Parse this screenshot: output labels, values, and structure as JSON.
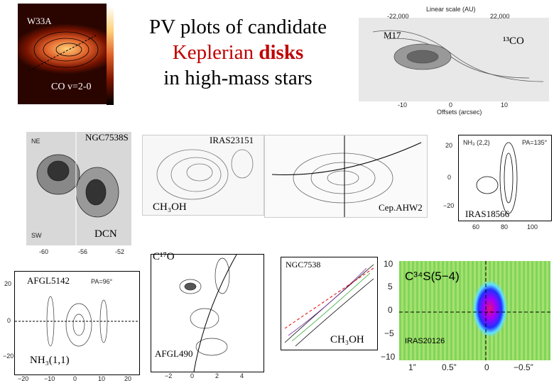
{
  "title": {
    "line1": "PV plots of candidate",
    "line2a": "Keplerian ",
    "line2b": "disks",
    "line3": "in high-mass stars"
  },
  "panels": [
    {
      "label": "W33A",
      "note": "CO v=2-0"
    },
    {
      "label": "M17",
      "note": "¹³CO",
      "top_axis": "Linear scale (AU)",
      "top_ticks": [
        "-22,000",
        "22,000"
      ],
      "x_axis": "Offsets (arcsec)",
      "x_ticks": [
        "-10",
        "0",
        "10"
      ]
    },
    {
      "label": "NGC7538S",
      "note": "DCN",
      "corners": [
        "NE",
        "SW"
      ],
      "x_ticks": [
        "-60",
        "-56",
        "-52"
      ]
    },
    {
      "label": "IRAS23151",
      "note": "CH₃OH"
    },
    {
      "label": "Cep.AHW2"
    },
    {
      "label": "IRAS18566",
      "line": "NH₃ (2,2)",
      "pa": "PA=135°",
      "y_ticks": [
        "20",
        "0",
        "−20"
      ],
      "x_ticks": [
        "60",
        "80",
        "100"
      ]
    },
    {
      "label": "AFGL5142",
      "note": "NH₃(1,1)",
      "pa": "PA=96°",
      "y_ticks": [
        "20",
        "0",
        "−20"
      ],
      "x_ticks": [
        "−20",
        "−10",
        "0",
        "10",
        "20"
      ]
    },
    {
      "label": "AFGL490",
      "note": "C¹⁷O",
      "x_ticks": [
        "−2",
        "0",
        "2",
        "4"
      ]
    },
    {
      "label": "NGC7538",
      "note": "CH₃OH"
    },
    {
      "label": "IRAS20126",
      "note": "C³⁴S(5−4)",
      "y_ticks": [
        "10",
        "5",
        "0",
        "−5",
        "−10"
      ],
      "x_ticks": [
        "1”",
        "0.5”",
        "0",
        "−0.5”"
      ]
    }
  ]
}
